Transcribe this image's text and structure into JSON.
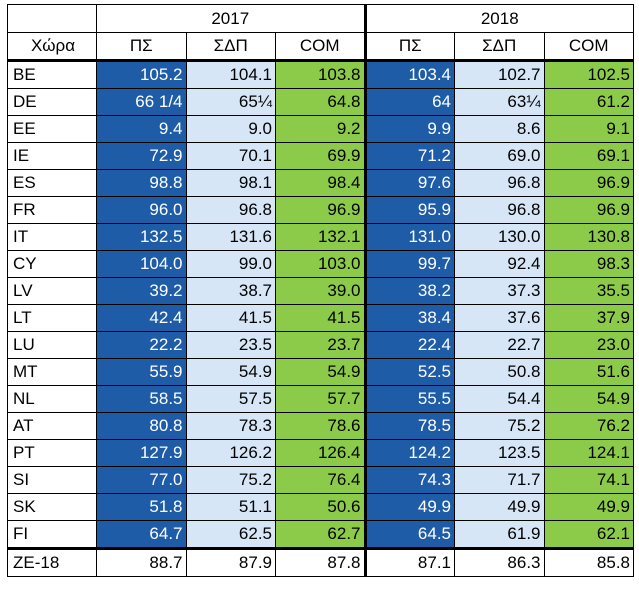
{
  "header": {
    "country_label": "Χώρα",
    "years": [
      "2017",
      "2018"
    ],
    "columns": [
      "ΠΣ",
      "ΣΔΠ",
      "COM"
    ]
  },
  "rows": [
    {
      "country": "BE",
      "v": [
        "105.2",
        "104.1",
        "103.8",
        "103.4",
        "102.7",
        "102.5"
      ]
    },
    {
      "country": "DE",
      "v": [
        "66 1/4",
        "65¼",
        "64.8",
        "64",
        "63¼",
        "61.2"
      ]
    },
    {
      "country": "EE",
      "v": [
        "9.4",
        "9.0",
        "9.2",
        "9.9",
        "8.6",
        "9.1"
      ]
    },
    {
      "country": "IE",
      "v": [
        "72.9",
        "70.1",
        "69.9",
        "71.2",
        "69.0",
        "69.1"
      ]
    },
    {
      "country": "ES",
      "v": [
        "98.8",
        "98.1",
        "98.4",
        "97.6",
        "96.8",
        "96.9"
      ]
    },
    {
      "country": "FR",
      "v": [
        "96.0",
        "96.8",
        "96.9",
        "95.9",
        "96.8",
        "96.9"
      ]
    },
    {
      "country": "IT",
      "v": [
        "132.5",
        "131.6",
        "132.1",
        "131.0",
        "130.0",
        "130.8"
      ]
    },
    {
      "country": "CY",
      "v": [
        "104.0",
        "99.0",
        "103.0",
        "99.7",
        "92.4",
        "98.3"
      ]
    },
    {
      "country": "LV",
      "v": [
        "39.2",
        "38.7",
        "39.0",
        "38.2",
        "37.3",
        "35.5"
      ]
    },
    {
      "country": "LT",
      "v": [
        "42.4",
        "41.5",
        "41.5",
        "38.4",
        "37.6",
        "37.9"
      ]
    },
    {
      "country": "LU",
      "v": [
        "22.2",
        "23.5",
        "23.7",
        "22.4",
        "22.7",
        "23.0"
      ]
    },
    {
      "country": "MT",
      "v": [
        "55.9",
        "54.9",
        "54.9",
        "52.5",
        "50.8",
        "51.6"
      ]
    },
    {
      "country": "NL",
      "v": [
        "58.5",
        "57.5",
        "57.7",
        "55.5",
        "54.4",
        "54.9"
      ]
    },
    {
      "country": "AT",
      "v": [
        "80.8",
        "78.3",
        "78.6",
        "78.5",
        "75.2",
        "76.2"
      ]
    },
    {
      "country": "PT",
      "v": [
        "127.9",
        "126.2",
        "126.4",
        "124.2",
        "123.5",
        "124.1"
      ]
    },
    {
      "country": "SI",
      "v": [
        "77.0",
        "75.2",
        "76.4",
        "74.3",
        "71.7",
        "74.1"
      ]
    },
    {
      "country": "SK",
      "v": [
        "51.8",
        "51.1",
        "50.6",
        "49.9",
        "49.9",
        "49.9"
      ]
    },
    {
      "country": "FI",
      "v": [
        "64.7",
        "62.5",
        "62.7",
        "64.5",
        "61.9",
        "62.1"
      ]
    }
  ],
  "total": {
    "country": "ZE-18",
    "v": [
      "88.7",
      "87.9",
      "87.8",
      "87.1",
      "86.3",
      "85.8"
    ]
  },
  "colors": {
    "ps": "#1f5ca8",
    "sdp": "#d6e6f7",
    "com": "#8ccb4a"
  }
}
